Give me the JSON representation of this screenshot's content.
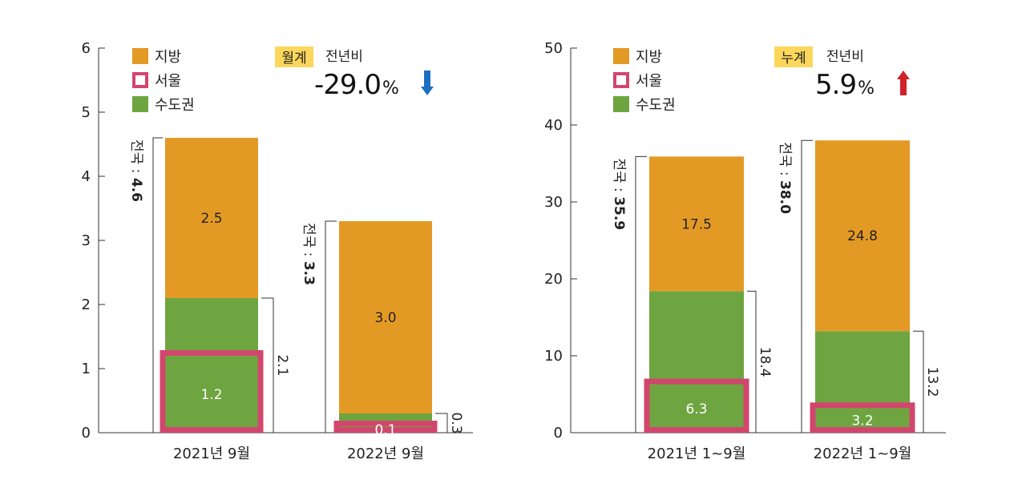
{
  "colors": {
    "regional": "#E39A25",
    "seoul": "#D2466E",
    "metro": "#6EA540",
    "badge": "#FCD75C",
    "down": "#1B6FC0",
    "up": "#D0222B"
  },
  "legend": {
    "regional": "지방",
    "seoul": "서울",
    "metro": "수도권"
  },
  "chart_data": [
    {
      "type": "bar",
      "stacked": true,
      "ylim": [
        0,
        6
      ],
      "yticks": [
        "0",
        "1",
        "2",
        "3",
        "4",
        "5",
        "6"
      ],
      "categories": [
        "2021년 9월",
        "2022년 9월"
      ],
      "series": [
        {
          "name": "수도권",
          "values": [
            2.1,
            0.3
          ]
        },
        {
          "name": "지방",
          "values": [
            2.5,
            3.0
          ]
        }
      ],
      "seoul": [
        1.2,
        0.1
      ],
      "seoul_labels": [
        "1.2",
        "0.1"
      ],
      "metro_labels": [
        "2.1",
        "0.3"
      ],
      "regional_labels": [
        "2.5",
        "3.0"
      ],
      "total_prefix": "전국 : ",
      "totals": [
        4.6,
        3.3
      ],
      "total_labels": [
        "4.6",
        "3.3"
      ],
      "badge": "월계",
      "yoy_label": "전년비",
      "yoy_value": "-29.0",
      "yoy_unit": "%",
      "direction": "down"
    },
    {
      "type": "bar",
      "stacked": true,
      "ylim": [
        0,
        50
      ],
      "yticks": [
        "0",
        "10",
        "20",
        "30",
        "40",
        "50"
      ],
      "categories": [
        "2021년 1~9월",
        "2022년 1~9월"
      ],
      "series": [
        {
          "name": "수도권",
          "values": [
            18.4,
            13.2
          ]
        },
        {
          "name": "지방",
          "values": [
            17.5,
            24.8
          ]
        }
      ],
      "seoul": [
        6.3,
        3.2
      ],
      "seoul_labels": [
        "6.3",
        "3.2"
      ],
      "metro_labels": [
        "18.4",
        "13.2"
      ],
      "regional_labels": [
        "17.5",
        "24.8"
      ],
      "total_prefix": "전국 : ",
      "totals": [
        35.9,
        38.0
      ],
      "total_labels": [
        "35.9",
        "38.0"
      ],
      "badge": "누계",
      "yoy_label": "전년비",
      "yoy_value": "5.9",
      "yoy_unit": "%",
      "direction": "up"
    }
  ]
}
